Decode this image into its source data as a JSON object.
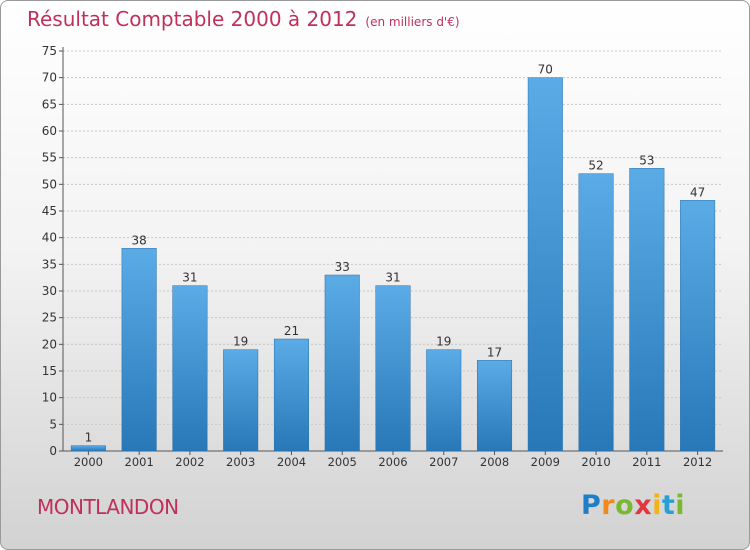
{
  "chart_data": {
    "type": "bar",
    "title": "Résultat Comptable 2000 à 2012",
    "subtitle": "(en milliers d'€)",
    "categories": [
      "2000",
      "2001",
      "2002",
      "2003",
      "2004",
      "2005",
      "2006",
      "2007",
      "2008",
      "2009",
      "2010",
      "2011",
      "2012"
    ],
    "values": [
      1,
      38,
      31,
      19,
      21,
      33,
      31,
      19,
      17,
      70,
      52,
      53,
      47
    ],
    "ylim": [
      0,
      75
    ],
    "yticks": [
      0,
      5,
      10,
      15,
      20,
      25,
      30,
      35,
      40,
      45,
      50,
      55,
      60,
      65,
      70,
      75
    ],
    "xlabel": "",
    "ylabel": "",
    "grid": true,
    "bar_color_top": "#5aabe6",
    "bar_color_bottom": "#2878b8"
  },
  "commune": "MONTLANDON",
  "brand": {
    "letters": [
      "P",
      "r",
      "o",
      "x",
      "i",
      "t",
      "i"
    ],
    "colors": [
      "#1e7fc8",
      "#f08a1c",
      "#7ab833",
      "#e0383e",
      "#f0b419",
      "#2a9fd6",
      "#7ab833"
    ]
  }
}
